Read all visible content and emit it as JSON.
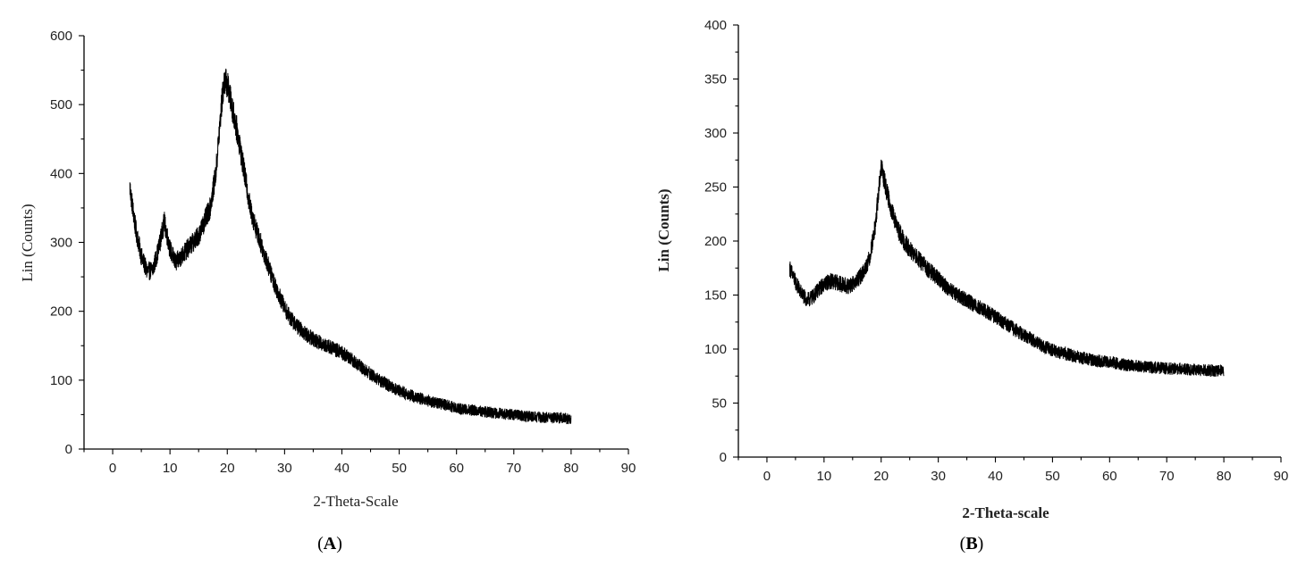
{
  "chart_data": [
    {
      "type": "line",
      "panel_label": "A",
      "xlabel": "2-Theta-Scale",
      "ylabel": "Lin (Counts)",
      "xlim": [
        -5,
        90
      ],
      "ylim": [
        0,
        600
      ],
      "xticks": [
        0,
        10,
        20,
        30,
        40,
        50,
        60,
        70,
        80,
        90
      ],
      "yticks": [
        0,
        100,
        200,
        300,
        400,
        500,
        600
      ],
      "grid": false,
      "series": [
        {
          "x": [
            3,
            4,
            5,
            6,
            7,
            8,
            9,
            10,
            11,
            12,
            13,
            14,
            15,
            16,
            17,
            18,
            19,
            19.5,
            20,
            21,
            22,
            23,
            24,
            25,
            26,
            27,
            28,
            29,
            30,
            31,
            32,
            33,
            34,
            35,
            36,
            38,
            40,
            42,
            44,
            46,
            48,
            50,
            52,
            55,
            58,
            60,
            62,
            65,
            68,
            70,
            72,
            75,
            78,
            80
          ],
          "y": [
            380,
            320,
            280,
            258,
            260,
            290,
            330,
            290,
            270,
            280,
            290,
            300,
            310,
            330,
            350,
            400,
            500,
            535,
            530,
            490,
            450,
            400,
            350,
            320,
            295,
            270,
            245,
            225,
            205,
            190,
            180,
            172,
            165,
            160,
            155,
            148,
            140,
            128,
            115,
            103,
            93,
            85,
            78,
            70,
            64,
            60,
            57,
            54,
            51,
            50,
            48,
            46,
            45,
            44
          ],
          "noise": 14
        }
      ]
    },
    {
      "type": "line",
      "panel_label": "B",
      "xlabel": "2-Theta-scale",
      "ylabel": "Lin (Counts)",
      "xlim": [
        -5,
        90
      ],
      "ylim": [
        0,
        400
      ],
      "xticks": [
        0,
        10,
        20,
        30,
        40,
        50,
        60,
        70,
        80,
        90
      ],
      "yticks": [
        0,
        50,
        100,
        150,
        200,
        250,
        300,
        350,
        400
      ],
      "grid": false,
      "series": [
        {
          "x": [
            4,
            5,
            6,
            7,
            8,
            9,
            10,
            11,
            12,
            13,
            14,
            15,
            16,
            17,
            18,
            19,
            20,
            21,
            22,
            23,
            24,
            25,
            26,
            28,
            30,
            32,
            34,
            36,
            38,
            40,
            42,
            44,
            46,
            48,
            50,
            52,
            55,
            58,
            60,
            62,
            65,
            68,
            70,
            72,
            75,
            78,
            80
          ],
          "y": [
            175,
            162,
            152,
            145,
            148,
            155,
            160,
            163,
            162,
            160,
            158,
            160,
            165,
            172,
            185,
            215,
            270,
            245,
            225,
            210,
            200,
            192,
            186,
            175,
            165,
            155,
            148,
            142,
            136,
            130,
            123,
            116,
            110,
            104,
            99,
            96,
            92,
            89,
            88,
            86,
            84,
            83,
            82,
            82,
            81,
            80,
            80
          ],
          "noise": 8
        }
      ]
    }
  ]
}
